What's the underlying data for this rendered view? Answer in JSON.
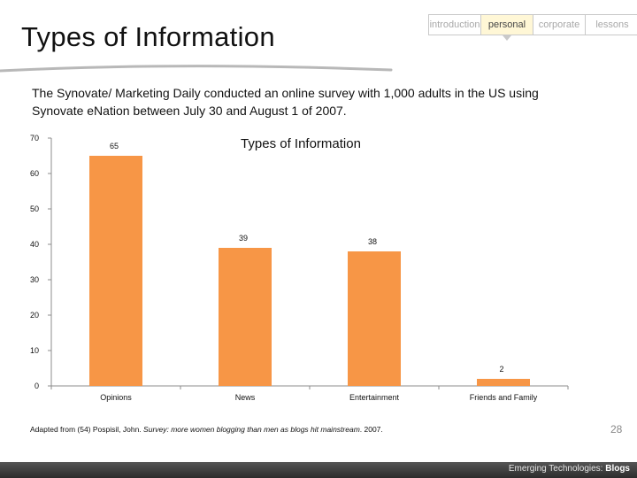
{
  "slide": {
    "title": "Types of Information",
    "description": "The Synovate/ Marketing Daily conducted an online survey with 1,000 adults in the US using Synovate eNation between July 30 and August 1 of 2007.",
    "footnote_prefix": "Adapted from (54) Pospisil, John. ",
    "footnote_italic": "Survey: more women blogging than men as blogs hit mainstream",
    "footnote_suffix": ". 2007.",
    "page_number": "28",
    "footer_label_prefix": "Emerging Technologies: ",
    "footer_label_bold": "Blogs"
  },
  "nav": {
    "tabs": [
      {
        "label": "introduction",
        "active": false
      },
      {
        "label": "personal",
        "active": true
      },
      {
        "label": "corporate",
        "active": false
      },
      {
        "label": "lessons",
        "active": false
      }
    ]
  },
  "colors": {
    "bar": "#f79646",
    "axis": "#8c8c8c",
    "active_tab_bg": "#fff7d6"
  },
  "chart_data": {
    "type": "bar",
    "title": "Types of Information",
    "categories": [
      "Opinions",
      "News",
      "Entertainment",
      "Friends and Family"
    ],
    "values": [
      65,
      39,
      38,
      2
    ],
    "data_labels": [
      "65",
      "39",
      "38",
      "2"
    ],
    "xlabel": "",
    "ylabel": "",
    "ylim": [
      0,
      70
    ],
    "yticks": [
      "0",
      "10",
      "20",
      "30",
      "40",
      "50",
      "60",
      "70"
    ],
    "grid": false,
    "legend": "none"
  }
}
